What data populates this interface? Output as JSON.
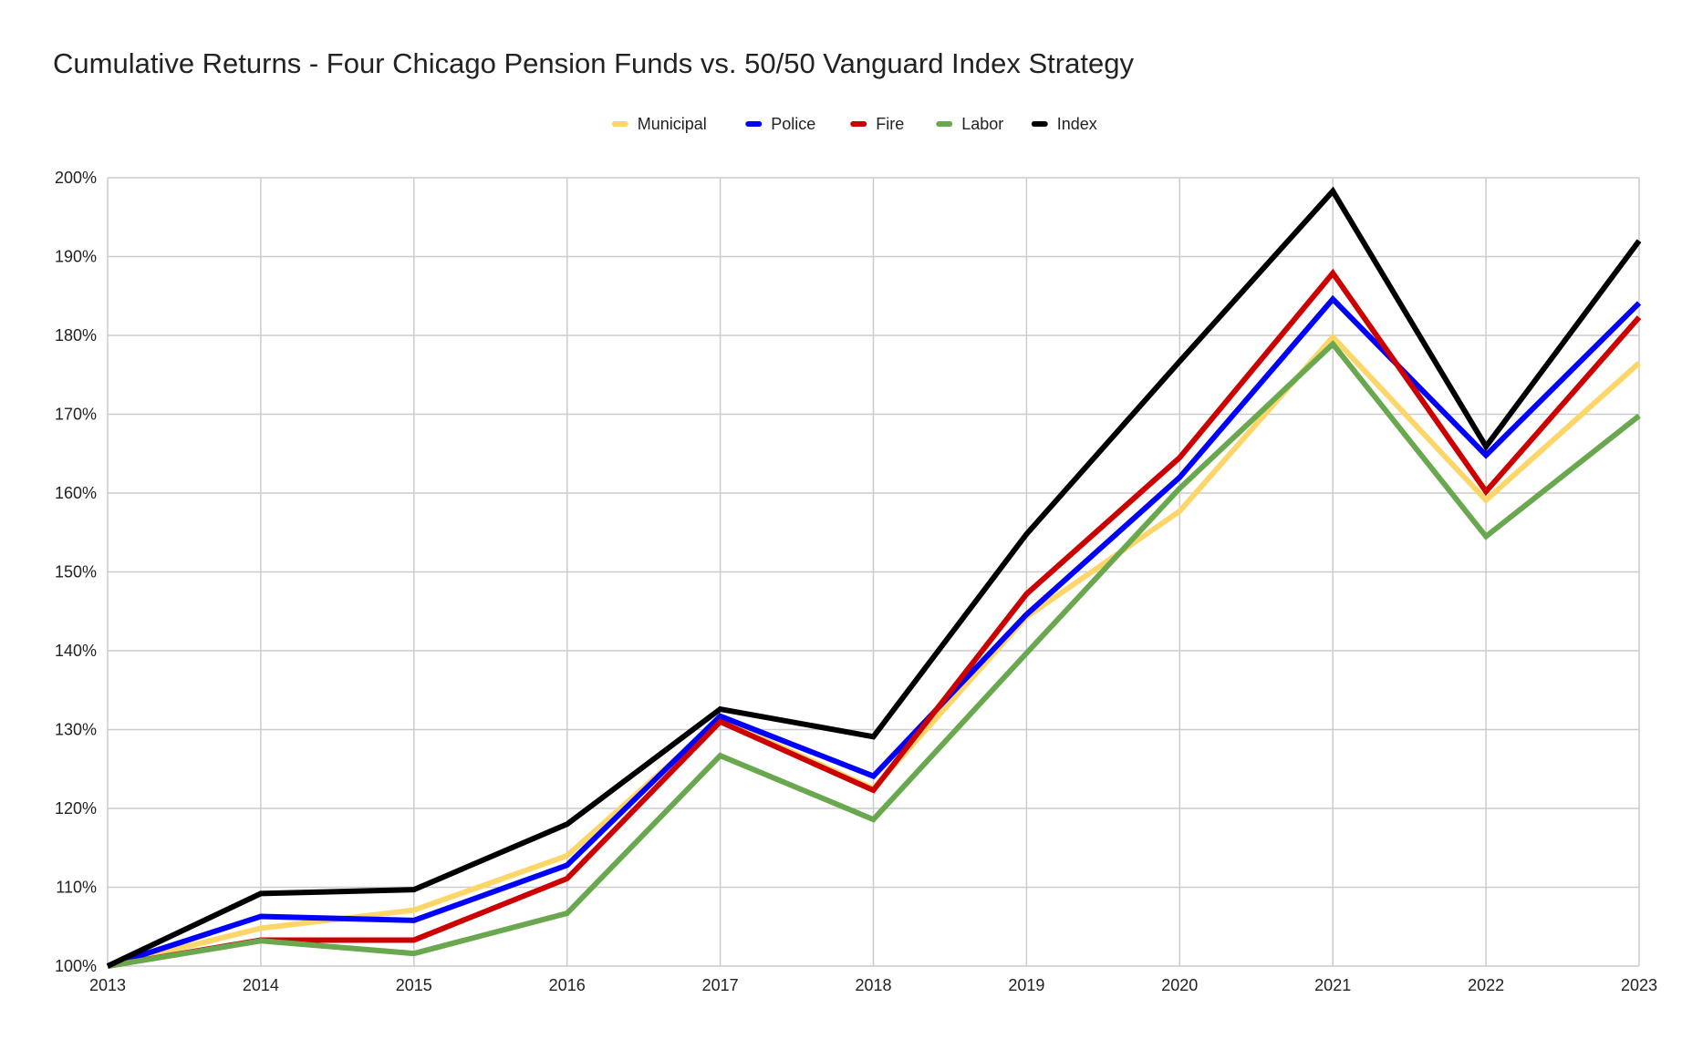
{
  "chart_data": {
    "type": "line",
    "title": "Cumulative Returns - Four Chicago Pension Funds vs. 50/50 Vanguard Index Strategy",
    "xlabel": "",
    "ylabel": "",
    "x": [
      "2013",
      "2014",
      "2015",
      "2016",
      "2017",
      "2018",
      "2019",
      "2020",
      "2021",
      "2022",
      "2023"
    ],
    "ylim": [
      100,
      200
    ],
    "yticks": [
      100,
      110,
      120,
      130,
      140,
      150,
      160,
      170,
      180,
      190,
      200
    ],
    "ytick_labels": [
      "100%",
      "110%",
      "120%",
      "130%",
      "140%",
      "150%",
      "160%",
      "170%",
      "180%",
      "190%",
      "200%"
    ],
    "grid": true,
    "legend_position": "top-center",
    "series": [
      {
        "name": "Municipal",
        "color": "#fcd669",
        "values": [
          100,
          104.8,
          107.1,
          114.0,
          131.3,
          122.5,
          144.3,
          157.7,
          179.8,
          159.1,
          176.5
        ]
      },
      {
        "name": "Police",
        "color": "#0000ff",
        "values": [
          100,
          106.3,
          105.8,
          112.8,
          131.7,
          124.1,
          144.6,
          162.0,
          184.6,
          164.8,
          184.1
        ]
      },
      {
        "name": "Fire",
        "color": "#cc0000",
        "values": [
          100,
          103.3,
          103.3,
          111.1,
          131.0,
          122.3,
          147.2,
          164.5,
          187.9,
          160.2,
          182.3
        ]
      },
      {
        "name": "Labor",
        "color": "#6aa84f",
        "values": [
          100,
          103.2,
          101.6,
          106.7,
          126.7,
          118.6,
          139.7,
          160.6,
          178.9,
          154.5,
          169.8
        ]
      },
      {
        "name": "Index",
        "color": "#000000",
        "values": [
          100,
          109.2,
          109.7,
          118.0,
          132.6,
          129.1,
          154.8,
          176.7,
          198.3,
          165.9,
          192.0
        ]
      }
    ]
  }
}
